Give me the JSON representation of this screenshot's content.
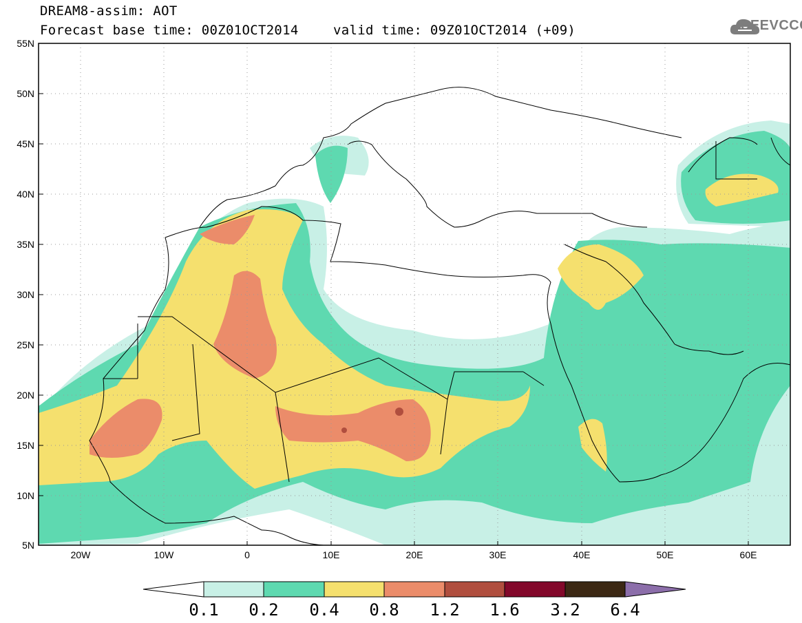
{
  "header": {
    "title": "DREAM8-assim: AOT",
    "base_time": "Forecast base time: 00Z01OCT2014",
    "valid_time": "valid time: 09Z01OCT2014 (+09)",
    "logo_text": "SEEVCCC"
  },
  "axes": {
    "lat_labels": [
      "55N",
      "50N",
      "45N",
      "40N",
      "35N",
      "30N",
      "25N",
      "20N",
      "15N",
      "10N",
      "5N"
    ],
    "lon_labels": [
      "20W",
      "10W",
      "0",
      "10E",
      "20E",
      "30E",
      "40E",
      "50E",
      "60E"
    ]
  },
  "colorbar": {
    "labels": [
      "0.1",
      "0.2",
      "0.4",
      "0.8",
      "1.2",
      "1.6",
      "3.2",
      "6.4"
    ],
    "colors": [
      "#ffffff",
      "#c8f0e6",
      "#5ed9b0",
      "#f5e06e",
      "#eb8c6a",
      "#b04e3e",
      "#82082a",
      "#3c2814",
      "#8c6eaa"
    ]
  }
}
